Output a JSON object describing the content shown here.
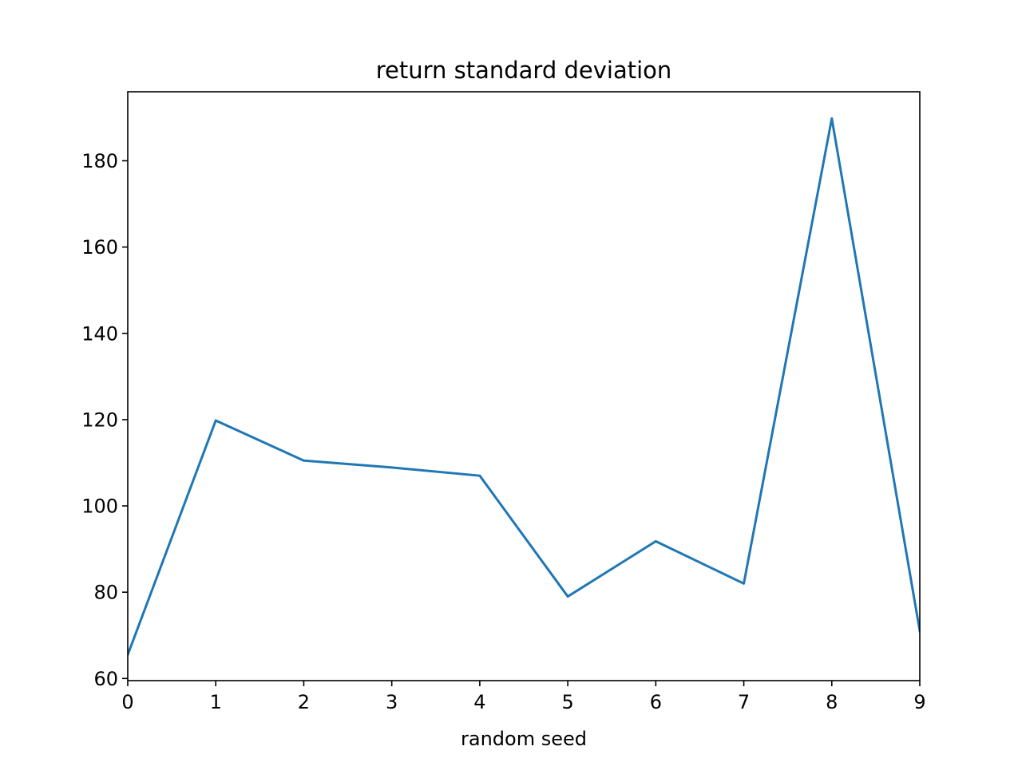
{
  "chart_data": {
    "type": "line",
    "title": "return standard deviation",
    "xlabel": "random seed",
    "ylabel": "",
    "xlim": [
      0,
      9
    ],
    "ylim": [
      59.5,
      196
    ],
    "x_ticks": [
      "0",
      "1",
      "2",
      "3",
      "4",
      "5",
      "6",
      "7",
      "8",
      "9"
    ],
    "y_ticks": [
      "60",
      "80",
      "100",
      "120",
      "140",
      "160",
      "180"
    ],
    "grid": false,
    "legend": "none",
    "series": [
      {
        "x": [
          0,
          1,
          2,
          3,
          4,
          5,
          6,
          7,
          8,
          9
        ],
        "values": [
          65.5,
          119.8,
          110.5,
          108.9,
          107.0,
          79.0,
          91.8,
          82.0,
          189.8,
          71.0
        ],
        "color": "#1f77b4"
      }
    ]
  }
}
